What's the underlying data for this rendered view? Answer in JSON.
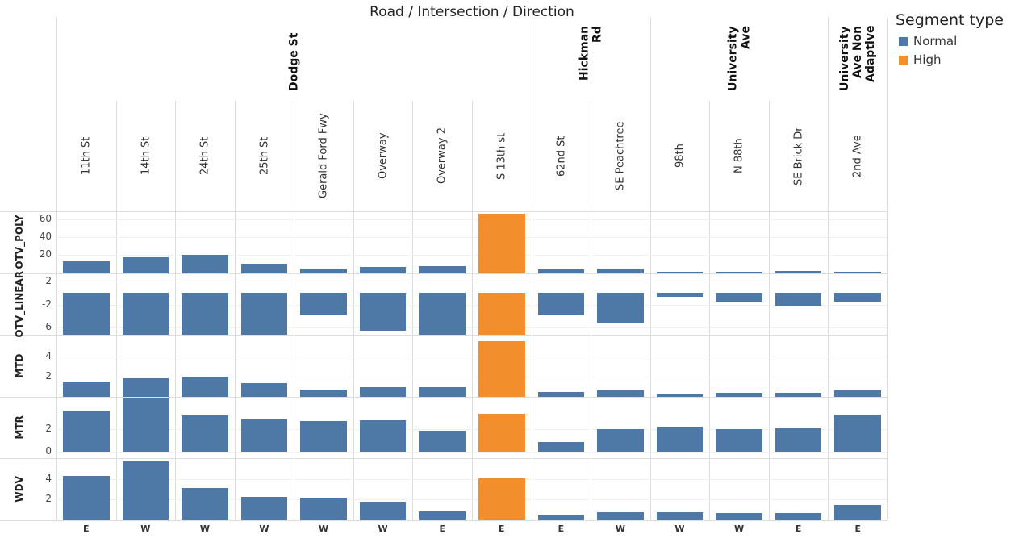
{
  "chart_data": {
    "type": "bar",
    "title": "Road / Intersection / Direction",
    "categories": [
      "11th St",
      "14th St",
      "24th St",
      "25th St",
      "Gerald Ford Fwy",
      "Overway",
      "Overway 2",
      "S 13th st",
      "62nd St",
      "SE Peachtree",
      "98th",
      "N 88th",
      "SE Brick Dr",
      "2nd Ave"
    ],
    "group": [
      "Dodge St",
      "Dodge St",
      "Dodge St",
      "Dodge St",
      "Dodge St",
      "Dodge St",
      "Dodge St",
      "Dodge St",
      "Hickman Rd",
      "Hickman Rd",
      "University Ave",
      "University Ave",
      "University Ave",
      "University Ave Non Adaptive"
    ],
    "direction": [
      "E",
      "W",
      "W",
      "W",
      "W",
      "W",
      "E",
      "E",
      "E",
      "W",
      "W",
      "W",
      "E",
      "E"
    ],
    "segment": [
      "Normal",
      "Normal",
      "Normal",
      "Normal",
      "Normal",
      "Normal",
      "Normal",
      "High",
      "Normal",
      "Normal",
      "Normal",
      "Normal",
      "Normal",
      "Normal"
    ],
    "legend": {
      "title": "Segment type",
      "items": [
        {
          "name": "Normal",
          "color": "#4e79a7"
        },
        {
          "name": "High",
          "color": "#f28e2b"
        }
      ]
    },
    "panels": [
      {
        "name": "OTV_POLY",
        "ylim": [
          0,
          69
        ],
        "yticks": [
          20,
          40,
          60
        ],
        "values": [
          13,
          18,
          20,
          10,
          5,
          7,
          8,
          66,
          4,
          5,
          1,
          1.5,
          2,
          1.5
        ]
      },
      {
        "name": "OTV_LINEAR",
        "ylim": [
          -7.3,
          3.5
        ],
        "yticks": [
          2,
          -2,
          -6
        ],
        "values": [
          -7.3,
          -7.3,
          -7.3,
          -7.3,
          -3.9,
          -6.6,
          -7.3,
          -7.3,
          -3.9,
          -5.1,
          -0.6,
          -1.7,
          -2.2,
          -1.5
        ]
      },
      {
        "name": "MTD",
        "ylim": [
          0,
          6.1
        ],
        "yticks": [
          2,
          4
        ],
        "values": [
          1.5,
          1.8,
          2.0,
          1.3,
          0.7,
          0.95,
          0.95,
          5.5,
          0.5,
          0.65,
          0.25,
          0.35,
          0.4,
          0.65
        ]
      },
      {
        "name": "MTR",
        "ylim": [
          -0.6,
          4.9
        ],
        "yticks": [
          0,
          2
        ],
        "values": [
          3.7,
          4.8,
          3.2,
          2.85,
          2.7,
          2.8,
          1.9,
          3.35,
          0.9,
          2.0,
          2.25,
          2.0,
          2.1,
          3.3
        ]
      },
      {
        "name": "WDV",
        "ylim": [
          0,
          6
        ],
        "yticks": [
          2,
          4
        ],
        "values": [
          4.3,
          5.7,
          3.1,
          2.3,
          2.2,
          1.8,
          0.9,
          4.1,
          0.55,
          0.8,
          0.8,
          0.7,
          0.7,
          1.45
        ]
      }
    ]
  }
}
